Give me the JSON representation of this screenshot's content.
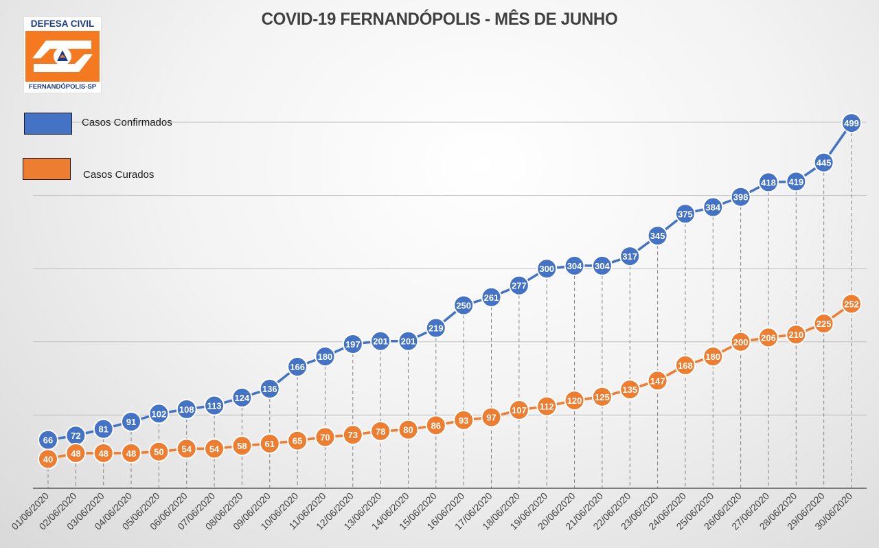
{
  "chart_data": {
    "type": "line",
    "title": "COVID-19 FERNANDÓPOLIS - MÊS DE JUNHO",
    "xlabel": "",
    "ylabel": "",
    "ylim": [
      0,
      500
    ],
    "categories": [
      "01/06/2020",
      "02/06/2020",
      "03/06/2020",
      "04/06/2020",
      "05/06/2020",
      "06/06/2020",
      "07/06/2020",
      "08/06/2020",
      "09/06/2020",
      "10/06/2020",
      "11/06/2020",
      "12/06/2020",
      "13/06/2020",
      "14/06/2020",
      "15/06/2020",
      "16/06/2020",
      "17/06/2020",
      "18/06/2020",
      "19/06/2020",
      "20/06/2020",
      "21/06/2020",
      "22/06/2020",
      "23/06/2020",
      "24/06/2020",
      "25/06/2020",
      "26/06/2020",
      "27/06/2020",
      "28/06/2020",
      "29/06/2020",
      "30/06/2020"
    ],
    "series": [
      {
        "name": "Casos Confirmados",
        "color": "#4472c4",
        "values": [
          66,
          72,
          81,
          91,
          102,
          108,
          113,
          124,
          136,
          166,
          180,
          197,
          201,
          201,
          219,
          250,
          261,
          277,
          300,
          304,
          304,
          317,
          345,
          375,
          384,
          398,
          418,
          419,
          445,
          499
        ]
      },
      {
        "name": "Casos Curados",
        "color": "#ed7d31",
        "values": [
          40,
          48,
          48,
          48,
          50,
          54,
          54,
          58,
          61,
          65,
          70,
          73,
          78,
          80,
          86,
          93,
          97,
          107,
          112,
          120,
          125,
          135,
          147,
          168,
          180,
          200,
          206,
          210,
          225,
          252
        ]
      }
    ],
    "grid": true,
    "legend": "top-left"
  },
  "logo": {
    "top_text": "DEFESA CIVIL",
    "bottom_text": "FERNANDÓPOLIS-SP",
    "colors": {
      "orange": "#f47920",
      "blue": "#1b3a8a"
    }
  }
}
